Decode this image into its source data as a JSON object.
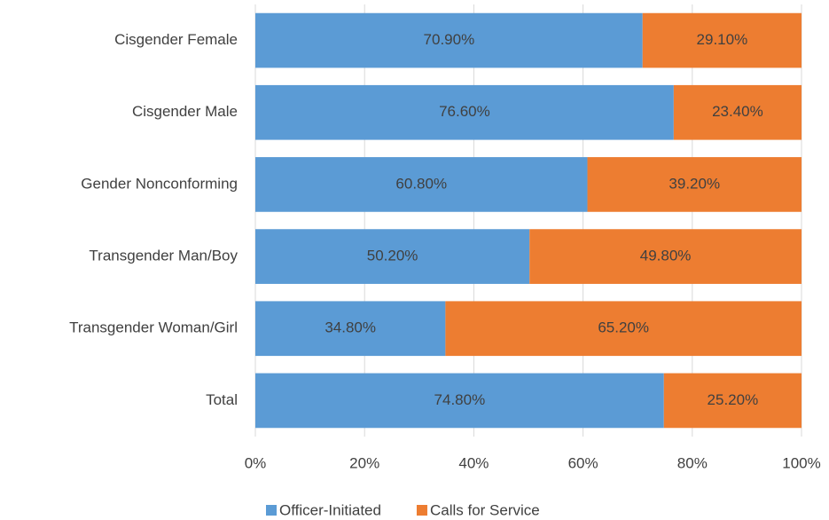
{
  "chart_data": {
    "type": "stacked-bar-horizontal",
    "categories": [
      "Cisgender Female",
      "Cisgender Male",
      "Gender Nonconforming",
      "Transgender Man/Boy",
      "Transgender Woman/Girl",
      "Total"
    ],
    "series": [
      {
        "name": "Officer-Initiated",
        "color": "#5b9bd5",
        "values": [
          70.9,
          76.6,
          60.8,
          50.2,
          34.8,
          74.8
        ],
        "value_labels": [
          "70.90%",
          "76.60%",
          "60.80%",
          "50.20%",
          "34.80%",
          "74.80%"
        ]
      },
      {
        "name": "Calls for Service",
        "color": "#ed7d31",
        "values": [
          29.1,
          23.4,
          39.2,
          49.8,
          65.2,
          25.2
        ],
        "value_labels": [
          "29.10%",
          "23.40%",
          "39.20%",
          "49.80%",
          "65.20%",
          "25.20%"
        ]
      }
    ],
    "xlim": [
      0,
      100
    ],
    "xticks": [
      {
        "value": 0,
        "label": "0%"
      },
      {
        "value": 20,
        "label": "20%"
      },
      {
        "value": 40,
        "label": "40%"
      },
      {
        "value": 60,
        "label": "60%"
      },
      {
        "value": 80,
        "label": "80%"
      },
      {
        "value": 100,
        "label": "100%"
      }
    ],
    "grid": true,
    "legend": "bottom"
  }
}
